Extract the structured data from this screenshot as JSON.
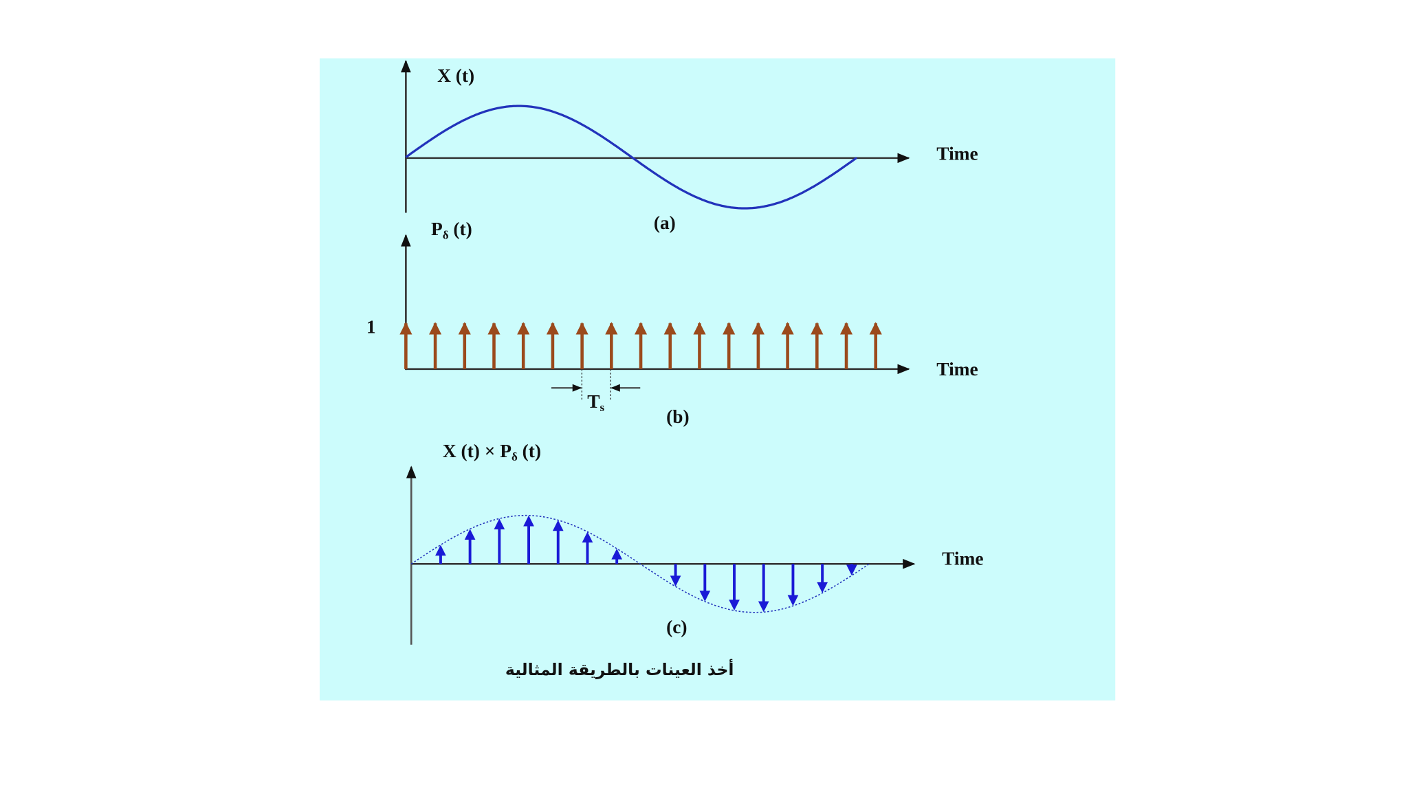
{
  "panel_a": {
    "y_label": "X (t)",
    "x_label": "Time",
    "caption": "(a)"
  },
  "panel_b": {
    "y_label": {
      "main": "P",
      "sub": "δ",
      "rest": " (t)"
    },
    "level": "1",
    "x_label": "Time",
    "period": {
      "main": "T",
      "sub": "s"
    },
    "caption": "(b)"
  },
  "panel_c": {
    "y_label": {
      "main": "X (t) × P",
      "sub": "δ",
      "rest": " (t)"
    },
    "x_label": "Time",
    "caption": "(c)"
  },
  "footer": {
    "caption": "أخذ العينات بالطريقة المثالية"
  }
}
